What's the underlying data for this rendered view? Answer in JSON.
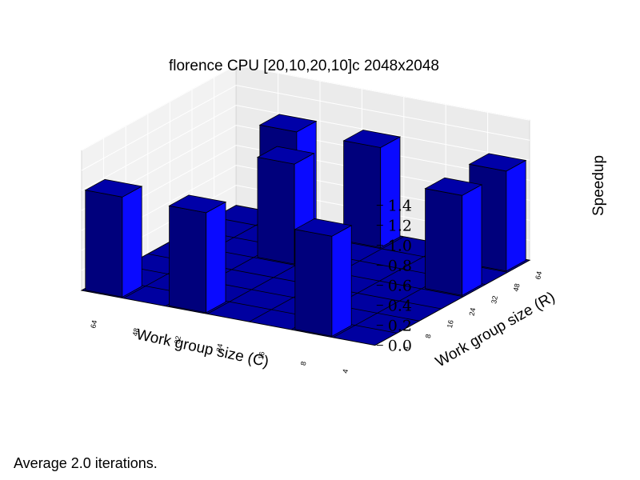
{
  "chart_data": {
    "type": "bar3d",
    "title": "florence CPU [20,10,20,10]c 2048x2048",
    "xlabel": "Work group size (C)",
    "ylabel": "Work group size (R)",
    "zlabel": "Speedup",
    "x_categories": [
      "64",
      "48",
      "32",
      "24",
      "16",
      "8",
      "4"
    ],
    "y_categories": [
      "4",
      "8",
      "16",
      "24",
      "32",
      "48",
      "64"
    ],
    "z_ticks": [
      "0.0",
      "0.2",
      "0.4",
      "0.6",
      "0.8",
      "1.0",
      "1.2",
      "1.4"
    ],
    "zlim": [
      0,
      1.4
    ],
    "bars": [
      {
        "c": "64",
        "r": "4",
        "value": 1.0
      },
      {
        "c": "48",
        "r": "64",
        "value": 1.0
      },
      {
        "c": "32",
        "r": "4",
        "value": 1.0
      },
      {
        "c": "32",
        "r": "32",
        "value": 1.0
      },
      {
        "c": "24",
        "r": "64",
        "value": 1.0
      },
      {
        "c": "8",
        "r": "4",
        "value": 1.0
      },
      {
        "c": "4",
        "r": "32",
        "value": 1.0
      },
      {
        "c": "4",
        "r": "64",
        "value": 1.0
      }
    ],
    "colors": {
      "bar_top": "#0000a8",
      "bar_front": "#00007c",
      "bar_side": "#0a0aff",
      "floor": "#0000a0"
    }
  },
  "footnote": "Average 2.0 iterations."
}
